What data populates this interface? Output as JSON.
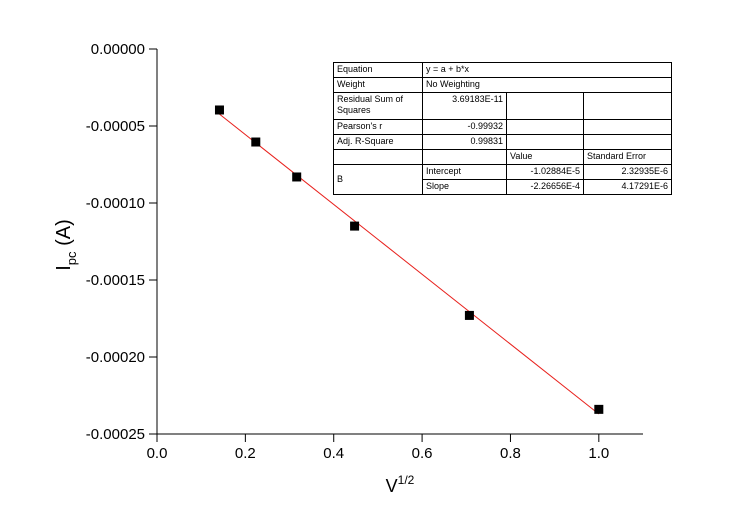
{
  "chart_data": {
    "type": "scatter",
    "x_label": {
      "main": "V",
      "sup": "1/2"
    },
    "y_label": {
      "main": "I",
      "sub": "pc",
      "rest": " (A)"
    },
    "xlim": [
      0,
      1.1
    ],
    "ylim": [
      -0.00025,
      0
    ],
    "xticks": [
      {
        "value": 0,
        "label": "0.0"
      },
      0.2,
      0.4,
      0.6,
      0.8,
      {
        "value": 1,
        "label": "1.0"
      }
    ],
    "yticks": [
      {
        "value": 0,
        "label": "0.00000"
      },
      {
        "value": -5e-05,
        "label": "-0.00005"
      },
      {
        "value": -0.0001,
        "label": "-0.00010"
      },
      {
        "value": -0.00015,
        "label": "-0.00015"
      },
      {
        "value": -0.0002,
        "label": "-0.00020"
      },
      {
        "value": -0.00025,
        "label": "-0.00025"
      }
    ],
    "series": [
      {
        "mode": "markers",
        "color": "#000000",
        "x": [
          0.1414,
          0.2236,
          0.3162,
          0.4472,
          0.7071,
          1.0
        ],
        "values": [
          -3.96e-05,
          -6.04e-05,
          -8.31e-05,
          -0.000115,
          -0.000173,
          -0.000234
        ]
      },
      {
        "mode": "line",
        "color": "#e8201c",
        "x": [
          0.1414,
          1.0
        ],
        "values": [
          -4.23e-05,
          -0.000237
        ]
      }
    ],
    "table": {
      "rows": [
        [
          "Equation",
          "y = a + b*x"
        ],
        [
          "Weight",
          "No Weighting"
        ],
        [
          "Residual Sum of Squares",
          "3.69183E-11"
        ],
        [
          "Pearson's r",
          "-0.99932"
        ],
        [
          "Adj. R-Square",
          "0.99831"
        ],
        [
          "Value",
          "Standard Error"
        ],
        [
          "B",
          "Intercept",
          "-1.02884E-5",
          "2.32935E-6"
        ],
        [
          "Slope",
          "-2.26656E-4",
          "4.17291E-6"
        ]
      ]
    }
  }
}
